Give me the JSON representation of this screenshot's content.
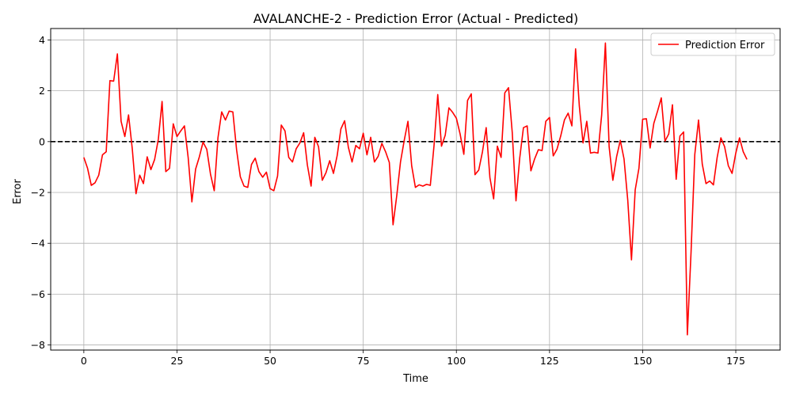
{
  "chart_data": {
    "type": "line",
    "title": "AVALANCHE-2 - Prediction Error (Actual - Predicted)",
    "xlabel": "Time",
    "ylabel": "Error",
    "xlim": [
      -8.9,
      186.9
    ],
    "ylim": [
      -8.2,
      4.45
    ],
    "xticks": [
      0,
      25,
      50,
      75,
      100,
      125,
      150,
      175
    ],
    "yticks": [
      4,
      2,
      0,
      -2,
      -4,
      -6,
      -8
    ],
    "grid": true,
    "legend_position": "top-right",
    "reference_line": {
      "y": 0,
      "style": "dashed",
      "color": "#000000"
    },
    "series": [
      {
        "name": "Prediction Error",
        "color": "#ff0000",
        "x_start": 0,
        "x_step": 1,
        "values": [
          -0.62,
          -1.05,
          -1.72,
          -1.62,
          -1.32,
          -0.52,
          -0.4,
          2.4,
          2.38,
          3.45,
          0.8,
          0.2,
          1.05,
          -0.28,
          -2.05,
          -1.32,
          -1.65,
          -0.6,
          -1.1,
          -0.7,
          0.1,
          1.58,
          -1.18,
          -1.05,
          0.7,
          0.2,
          0.42,
          0.62,
          -0.62,
          -2.37,
          -1.08,
          -0.6,
          -0.02,
          -0.3,
          -1.28,
          -1.93,
          0.15,
          1.17,
          0.85,
          1.2,
          1.17,
          -0.32,
          -1.38,
          -1.75,
          -1.8,
          -0.9,
          -0.65,
          -1.18,
          -1.4,
          -1.2,
          -1.85,
          -1.93,
          -1.35,
          0.65,
          0.42,
          -0.62,
          -0.8,
          -0.28,
          -0.05,
          0.35,
          -0.92,
          -1.75,
          0.17,
          -0.2,
          -1.52,
          -1.22,
          -0.75,
          -1.25,
          -0.55,
          0.5,
          0.82,
          -0.22,
          -0.8,
          -0.15,
          -0.28,
          0.33,
          -0.52,
          0.17,
          -0.8,
          -0.58,
          -0.07,
          -0.4,
          -0.82,
          -3.27,
          -2.12,
          -0.8,
          0.05,
          0.8,
          -0.95,
          -1.8,
          -1.7,
          -1.75,
          -1.68,
          -1.72,
          -0.15,
          1.85,
          -0.18,
          0.25,
          1.33,
          1.15,
          0.92,
          0.3,
          -0.5,
          1.62,
          1.88,
          -1.3,
          -1.12,
          -0.4,
          0.55,
          -1.42,
          -2.25,
          -0.18,
          -0.62,
          1.92,
          2.12,
          0.35,
          -2.33,
          -0.65,
          0.55,
          0.62,
          -1.15,
          -0.68,
          -0.32,
          -0.35,
          0.8,
          0.95,
          -0.56,
          -0.3,
          0.22,
          0.85,
          1.12,
          0.62,
          3.65,
          1.4,
          -0.05,
          0.8,
          -0.45,
          -0.42,
          -0.45,
          1.05,
          3.88,
          -0.2,
          -1.52,
          -0.6,
          0.05,
          -0.68,
          -2.3,
          -4.65,
          -1.9,
          -1.05,
          0.88,
          0.9,
          -0.25,
          0.72,
          1.2,
          1.72,
          0.02,
          0.3,
          1.45,
          -1.48,
          0.22,
          0.38,
          -7.6,
          -4.32,
          -0.5,
          0.85,
          -0.88,
          -1.65,
          -1.55,
          -1.7,
          -0.62,
          0.15,
          -0.2,
          -0.95,
          -1.25,
          -0.45,
          0.15,
          -0.4,
          -0.7
        ]
      }
    ]
  }
}
